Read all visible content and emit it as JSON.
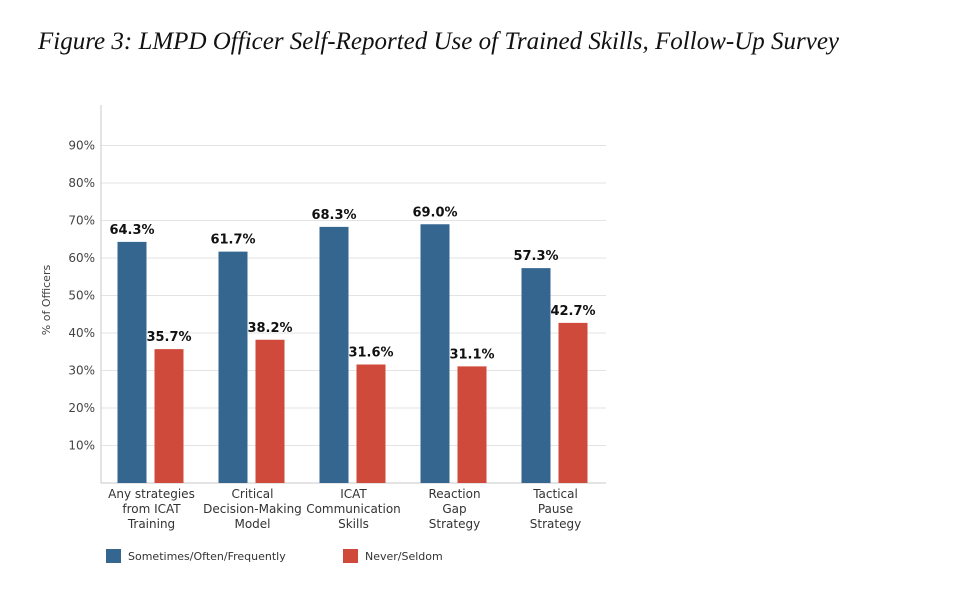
{
  "figure": {
    "title": "Figure 3: LMPD Officer Self-Reported Use of Trained Skills, Follow-Up Survey"
  },
  "chart_data": {
    "type": "bar",
    "ylabel": "% of Officers",
    "xlabel": "",
    "ylim": [
      0,
      100
    ],
    "yticks": [
      10,
      20,
      30,
      40,
      50,
      60,
      70,
      80,
      90
    ],
    "ytick_labels": [
      "10%",
      "20%",
      "30%",
      "40%",
      "50%",
      "60%",
      "70%",
      "80%",
      "90%"
    ],
    "grid": true,
    "legend_position": "bottom",
    "categories": [
      [
        "Any strategies",
        "from ICAT",
        "Training"
      ],
      [
        "Critical",
        "Decision-Making",
        "Model"
      ],
      [
        "ICAT",
        "Communication",
        "Skills"
      ],
      [
        "Reaction",
        "Gap",
        "Strategy"
      ],
      [
        "Tactical",
        "Pause",
        "Strategy"
      ]
    ],
    "series": [
      {
        "name": "Sometimes/Often/Frequently",
        "color": "#356690",
        "values": [
          64.3,
          61.7,
          68.3,
          69.0,
          57.3
        ],
        "labels": [
          "64.3%",
          "61.7%",
          "68.3%",
          "69.0%",
          "57.3%"
        ]
      },
      {
        "name": "Never/Seldom",
        "color": "#cf4a3b",
        "values": [
          35.7,
          38.2,
          31.6,
          31.1,
          42.7
        ],
        "labels": [
          "35.7%",
          "38.2%",
          "31.6%",
          "31.1%",
          "42.7%"
        ]
      }
    ]
  }
}
